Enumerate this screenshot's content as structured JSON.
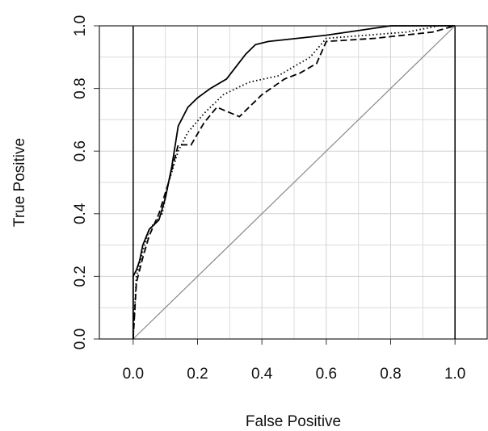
{
  "chart_data": {
    "type": "line",
    "x_label": "False Positive",
    "y_label": "True Positive",
    "xlim": [
      -0.105,
      1.1
    ],
    "ylim": [
      0,
      1
    ],
    "xticks": [
      {
        "value": 0,
        "label": "0.0"
      },
      0.2,
      0.4,
      0.6,
      0.8,
      {
        "value": 1,
        "label": "1.0"
      }
    ],
    "yticks": [
      {
        "value": 0,
        "label": "0.0"
      },
      0.2,
      0.4,
      0.6,
      0.8,
      {
        "value": 1,
        "label": "1.0"
      }
    ],
    "grid": true,
    "x_minor_grid": [
      0.1,
      0.3,
      0.5,
      0.7,
      0.9
    ],
    "y_minor_grid": [
      0.1,
      0.3,
      0.5,
      0.7,
      0.9
    ],
    "vlines": [
      0,
      1
    ],
    "reference_line": {
      "x": [
        0,
        1
      ],
      "values": [
        0,
        1
      ],
      "color": "#888888"
    },
    "series": [
      {
        "style": "solid",
        "color": "#000000",
        "x": [
          0,
          0,
          0.01,
          0.02,
          0.03,
          0.05,
          0.08,
          0.1,
          0.12,
          0.14,
          0.15,
          0.17,
          0.2,
          0.24,
          0.29,
          0.32,
          0.35,
          0.38,
          0.42,
          0.6,
          0.8,
          1
        ],
        "values": [
          0,
          0.2,
          0.22,
          0.25,
          0.3,
          0.35,
          0.38,
          0.45,
          0.55,
          0.68,
          0.7,
          0.74,
          0.77,
          0.8,
          0.83,
          0.87,
          0.91,
          0.94,
          0.95,
          0.97,
          1,
          1
        ]
      },
      {
        "style": "dotted",
        "color": "#000000",
        "x": [
          0,
          0.01,
          0.03,
          0.05,
          0.09,
          0.11,
          0.14,
          0.17,
          0.22,
          0.28,
          0.36,
          0.45,
          0.55,
          0.6,
          0.85,
          0.95,
          1
        ],
        "values": [
          0,
          0.2,
          0.28,
          0.35,
          0.4,
          0.5,
          0.6,
          0.66,
          0.72,
          0.78,
          0.82,
          0.84,
          0.9,
          0.96,
          0.98,
          1,
          1
        ]
      },
      {
        "style": "dashed",
        "color": "#000000",
        "x": [
          0,
          0.01,
          0.03,
          0.05,
          0.08,
          0.11,
          0.14,
          0.18,
          0.22,
          0.26,
          0.33,
          0.4,
          0.47,
          0.52,
          0.57,
          0.6,
          0.75,
          0.93,
          1
        ],
        "values": [
          0,
          0.18,
          0.26,
          0.33,
          0.4,
          0.5,
          0.62,
          0.62,
          0.69,
          0.74,
          0.71,
          0.78,
          0.83,
          0.85,
          0.88,
          0.95,
          0.96,
          0.98,
          1
        ]
      }
    ]
  }
}
